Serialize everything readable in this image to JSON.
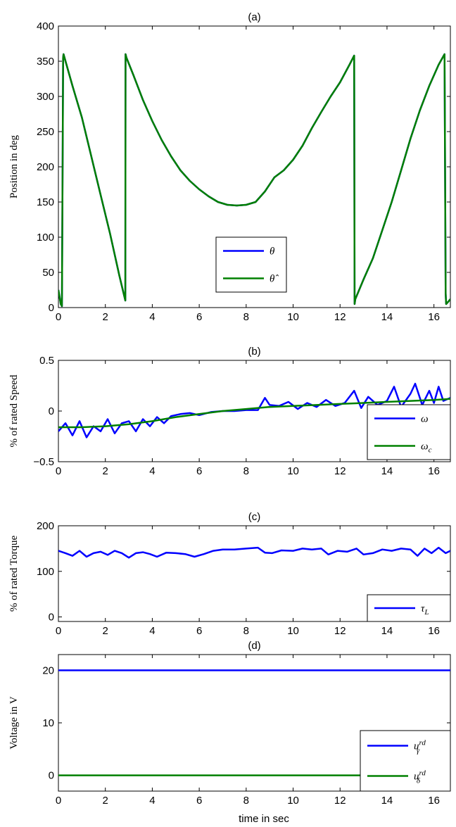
{
  "figure": {
    "xlabel": "time in sec"
  },
  "chart_data": [
    {
      "id": "a",
      "type": "line",
      "title": "(a)",
      "xlabel": "",
      "ylabel": "Position in deg",
      "xlim": [
        0,
        16.7
      ],
      "ylim": [
        0,
        400
      ],
      "xticks": [
        0,
        2,
        4,
        6,
        8,
        10,
        12,
        14,
        16
      ],
      "yticks": [
        0,
        50,
        100,
        150,
        200,
        250,
        300,
        350,
        400
      ],
      "legend_position": "lower-center",
      "series": [
        {
          "name": "θ",
          "color": "#0000ff",
          "x": [
            0,
            0.05,
            0.1,
            0.15,
            0.2,
            0.22,
            0.6,
            1.0,
            1.4,
            1.8,
            2.2,
            2.6,
            2.85,
            2.86,
            2.9,
            3.2,
            3.6,
            4.0,
            4.4,
            4.8,
            5.2,
            5.6,
            6.0,
            6.4,
            6.8,
            7.2,
            7.6,
            8.0,
            8.4,
            8.8,
            9.2,
            9.6,
            10.0,
            10.4,
            10.8,
            11.2,
            11.6,
            12.0,
            12.4,
            12.6,
            12.62,
            12.65,
            13.0,
            13.4,
            13.8,
            14.2,
            14.6,
            15.0,
            15.4,
            15.8,
            16.2,
            16.45,
            16.5,
            16.52,
            16.6,
            16.7
          ],
          "y": [
            25,
            15,
            5,
            2,
            355,
            360,
            315,
            270,
            215,
            160,
            105,
            45,
            10,
            360,
            355,
            330,
            295,
            265,
            238,
            215,
            195,
            180,
            168,
            158,
            150,
            146,
            145,
            146,
            150,
            165,
            185,
            195,
            210,
            230,
            255,
            278,
            300,
            320,
            345,
            358,
            5,
            12,
            40,
            70,
            110,
            150,
            195,
            240,
            280,
            315,
            345,
            360,
            20,
            5,
            8,
            12
          ]
        },
        {
          "name": "θ̂",
          "color": "#008000",
          "x": [
            0,
            0.05,
            0.1,
            0.15,
            0.2,
            0.22,
            0.6,
            1.0,
            1.4,
            1.8,
            2.2,
            2.6,
            2.85,
            2.86,
            2.9,
            3.2,
            3.6,
            4.0,
            4.4,
            4.8,
            5.2,
            5.6,
            6.0,
            6.4,
            6.8,
            7.2,
            7.6,
            8.0,
            8.4,
            8.8,
            9.2,
            9.6,
            10.0,
            10.4,
            10.8,
            11.2,
            11.6,
            12.0,
            12.4,
            12.6,
            12.62,
            12.65,
            13.0,
            13.4,
            13.8,
            14.2,
            14.6,
            15.0,
            15.4,
            15.8,
            16.2,
            16.45,
            16.5,
            16.52,
            16.6,
            16.7
          ],
          "y": [
            25,
            15,
            5,
            2,
            355,
            360,
            315,
            270,
            215,
            160,
            105,
            45,
            10,
            360,
            355,
            330,
            295,
            265,
            238,
            215,
            195,
            180,
            168,
            158,
            150,
            146,
            145,
            146,
            150,
            165,
            185,
            195,
            210,
            230,
            255,
            278,
            300,
            320,
            345,
            358,
            5,
            12,
            40,
            70,
            110,
            150,
            195,
            240,
            280,
            315,
            345,
            360,
            20,
            5,
            8,
            12
          ]
        }
      ]
    },
    {
      "id": "b",
      "type": "line",
      "title": "(b)",
      "xlabel": "",
      "ylabel": "% of rated Speed",
      "xlim": [
        0,
        16.7
      ],
      "ylim": [
        -0.5,
        0.5
      ],
      "xticks": [
        0,
        2,
        4,
        6,
        8,
        10,
        12,
        14,
        16
      ],
      "yticks": [
        -0.5,
        0,
        0.5
      ],
      "ytick_labels": [
        "−0.5",
        "0",
        "0.5"
      ],
      "legend_position": "lower-right",
      "series": [
        {
          "name": "ω",
          "color": "#0000ff",
          "x": [
            0,
            0.3,
            0.6,
            0.9,
            1.2,
            1.5,
            1.8,
            2.1,
            2.4,
            2.7,
            3.0,
            3.3,
            3.6,
            3.9,
            4.2,
            4.5,
            4.8,
            5.2,
            5.6,
            6.0,
            6.5,
            7.0,
            7.5,
            8.0,
            8.5,
            8.8,
            9.0,
            9.4,
            9.8,
            10.2,
            10.6,
            11.0,
            11.4,
            11.8,
            12.2,
            12.6,
            12.9,
            13.2,
            13.6,
            14.0,
            14.3,
            14.6,
            15.0,
            15.2,
            15.5,
            15.8,
            16.0,
            16.2,
            16.4,
            16.7
          ],
          "y": [
            -0.2,
            -0.12,
            -0.24,
            -0.1,
            -0.26,
            -0.15,
            -0.2,
            -0.08,
            -0.22,
            -0.12,
            -0.1,
            -0.2,
            -0.08,
            -0.15,
            -0.06,
            -0.12,
            -0.05,
            -0.03,
            -0.02,
            -0.04,
            -0.01,
            0,
            0,
            0.01,
            0.01,
            0.13,
            0.06,
            0.05,
            0.09,
            0.02,
            0.08,
            0.04,
            0.11,
            0.05,
            0.08,
            0.2,
            0.03,
            0.14,
            0.06,
            0.1,
            0.24,
            0.04,
            0.17,
            0.27,
            0.06,
            0.2,
            0.08,
            0.24,
            0.1,
            0.13
          ]
        },
        {
          "name": "ω_c",
          "color": "#008000",
          "x": [
            0,
            1,
            2,
            3,
            4,
            5,
            6,
            7,
            8,
            9,
            10,
            11,
            12,
            13,
            14,
            15,
            16,
            16.7
          ],
          "y": [
            -0.16,
            -0.16,
            -0.15,
            -0.13,
            -0.1,
            -0.06,
            -0.03,
            0,
            0.02,
            0.04,
            0.05,
            0.06,
            0.07,
            0.08,
            0.09,
            0.1,
            0.11,
            0.12
          ]
        }
      ]
    },
    {
      "id": "c",
      "type": "line",
      "title": "(c)",
      "xlabel": "",
      "ylabel": "% of rated Torque",
      "xlim": [
        0,
        16.7
      ],
      "ylim": [
        -10,
        200
      ],
      "xticks": [
        0,
        2,
        4,
        6,
        8,
        10,
        12,
        14,
        16
      ],
      "yticks": [
        0,
        100,
        200
      ],
      "legend_position": "lower-right",
      "series": [
        {
          "name": "τ_L",
          "color": "#0000ff",
          "x": [
            0,
            0.3,
            0.6,
            0.9,
            1.2,
            1.5,
            1.8,
            2.1,
            2.4,
            2.7,
            3.0,
            3.3,
            3.6,
            3.9,
            4.2,
            4.6,
            5.0,
            5.4,
            5.8,
            6.2,
            6.6,
            7.0,
            7.5,
            8.0,
            8.5,
            8.8,
            9.1,
            9.5,
            10.0,
            10.4,
            10.8,
            11.2,
            11.5,
            11.9,
            12.3,
            12.7,
            13.0,
            13.4,
            13.8,
            14.2,
            14.6,
            15.0,
            15.3,
            15.6,
            15.9,
            16.2,
            16.5,
            16.7
          ],
          "y": [
            145,
            140,
            134,
            145,
            132,
            140,
            143,
            136,
            145,
            140,
            130,
            140,
            142,
            138,
            132,
            141,
            140,
            138,
            132,
            138,
            145,
            148,
            148,
            150,
            152,
            141,
            140,
            146,
            145,
            150,
            148,
            150,
            137,
            145,
            143,
            150,
            137,
            140,
            148,
            145,
            150,
            148,
            134,
            150,
            140,
            152,
            140,
            145
          ]
        }
      ]
    },
    {
      "id": "d",
      "type": "line",
      "title": "(d)",
      "xlabel": "time in sec",
      "ylabel": "Voltage in V",
      "xlim": [
        0,
        16.7
      ],
      "ylim": [
        -3,
        23
      ],
      "xticks": [
        0,
        2,
        4,
        6,
        8,
        10,
        12,
        14,
        16
      ],
      "yticks": [
        0,
        10,
        20
      ],
      "legend_position": "lower-right",
      "series": [
        {
          "name": "u_γ^rd",
          "color": "#0000ff",
          "x": [
            0,
            16.7
          ],
          "y": [
            20,
            20
          ]
        },
        {
          "name": "u_δ^rd",
          "color": "#008000",
          "x": [
            0,
            16.7
          ],
          "y": [
            0,
            0
          ]
        }
      ]
    }
  ]
}
